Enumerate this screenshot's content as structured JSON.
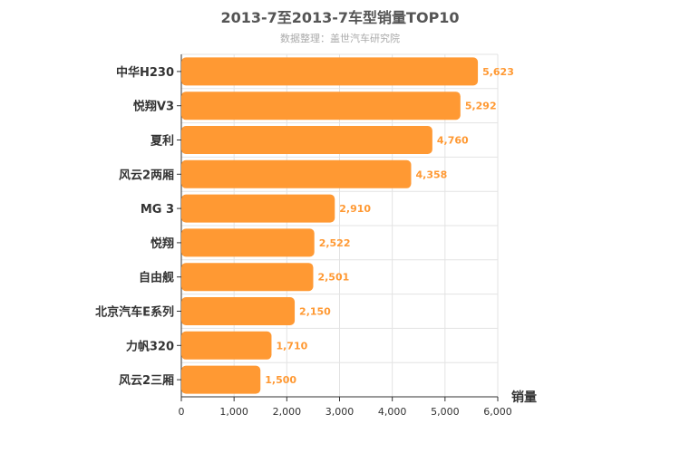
{
  "chart_data": {
    "type": "bar",
    "orientation": "horizontal",
    "title": "2013-7至2013-7车型销量TOP10",
    "subtitle": "数据整理：盖世汽车研究院",
    "xlabel": "销量",
    "ylabel": "",
    "xlim": [
      0,
      6000
    ],
    "ticks": [
      "0",
      "1,000",
      "2,000",
      "3,000",
      "4,000",
      "5,000",
      "6,000"
    ],
    "tick_values": [
      0,
      1000,
      2000,
      3000,
      4000,
      5000,
      6000
    ],
    "grid": true,
    "bar_color": "#ff9933",
    "label_color": "#ff9933",
    "categories": [
      "中华H230",
      "悦翔V3",
      "夏利",
      "风云2两厢",
      "MG 3",
      "悦翔",
      "自由舰",
      "北京汽车E系列",
      "力帆320",
      "风云2三厢"
    ],
    "values": [
      5623,
      5292,
      4760,
      4358,
      2910,
      2522,
      2501,
      2150,
      1710,
      1500
    ],
    "value_labels": [
      "5,623",
      "5,292",
      "4,760",
      "4,358",
      "2,910",
      "2,522",
      "2,501",
      "2,150",
      "1,710",
      "1,500"
    ]
  }
}
